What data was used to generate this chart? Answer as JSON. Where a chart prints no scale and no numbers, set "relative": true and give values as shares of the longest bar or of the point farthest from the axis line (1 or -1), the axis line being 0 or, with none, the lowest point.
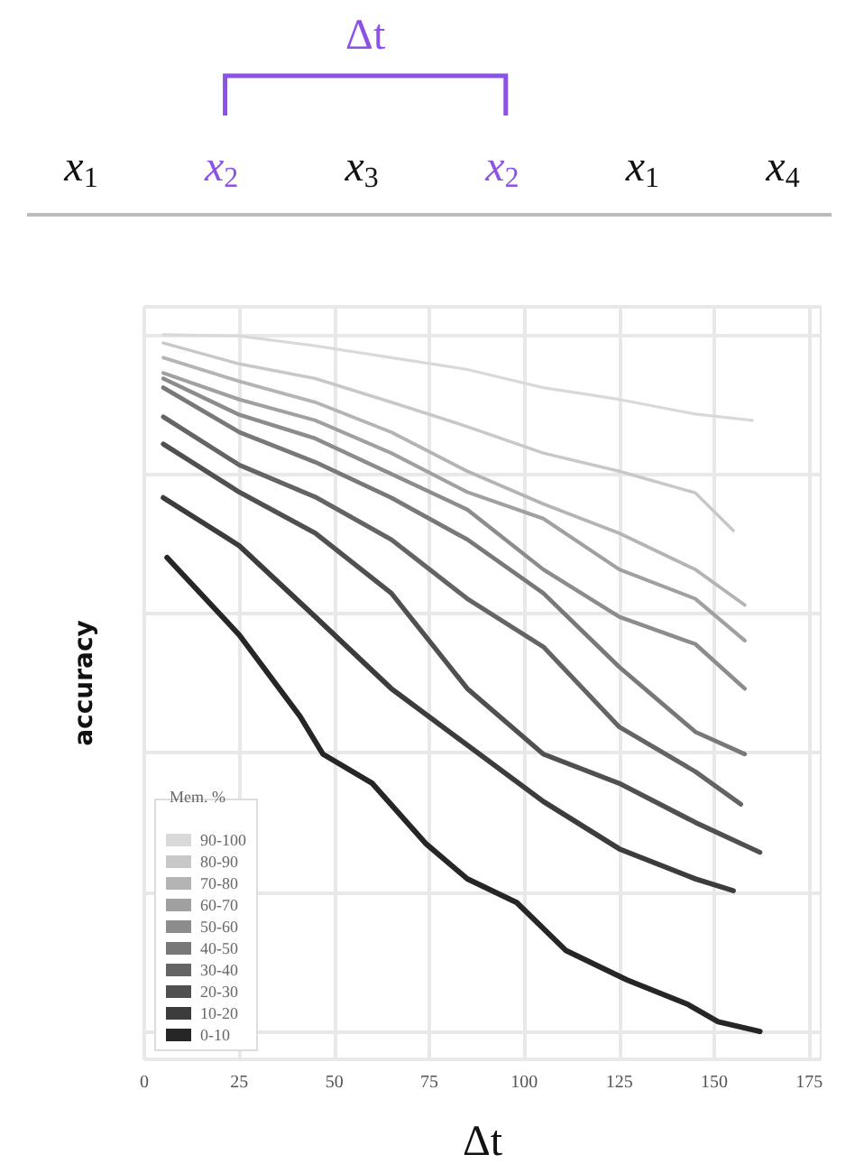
{
  "chart_data": {
    "type": "line",
    "relative": true,
    "xlabel": "Δt",
    "ylabel": "accuracy",
    "legend_title": "Mem. %",
    "legend": "bottom left",
    "grid": true,
    "marker": "none",
    "line_style": "solid",
    "annotations": [
      "Δt",
      "x$_{1}$",
      "x$_{2}$",
      "x$_{3}$",
      "x$_{2}$",
      "x$_{1}$",
      "x$_{4}$"
    ],
    "xlim": [
      0,
      178
    ],
    "xticks": [
      0,
      25,
      50,
      75,
      100,
      125,
      150,
      175
    ],
    "series": [
      {
        "name": "90-100",
        "color": "#d9d9d9",
        "x": [
          5,
          25,
          45,
          65,
          85,
          105,
          125,
          145,
          160
        ],
        "values": [
          1,
          0.998,
          0.984,
          0.967,
          0.95,
          0.924,
          0.907,
          0.886,
          0.877
        ]
      },
      {
        "name": "80-90",
        "color": "#c8c8c8",
        "x": [
          5,
          25,
          45,
          65,
          85,
          105,
          125,
          145,
          155
        ],
        "values": [
          0.988,
          0.958,
          0.937,
          0.903,
          0.868,
          0.83,
          0.804,
          0.773,
          0.719
        ]
      },
      {
        "name": "70-80",
        "color": "#b4b4b4",
        "x": [
          5,
          25,
          45,
          65,
          85,
          105,
          125,
          145,
          158
        ],
        "values": [
          0.967,
          0.933,
          0.903,
          0.86,
          0.804,
          0.757,
          0.715,
          0.663,
          0.612
        ]
      },
      {
        "name": "60-70",
        "color": "#a0a0a0",
        "x": [
          5,
          25,
          45,
          65,
          85,
          105,
          125,
          145,
          158
        ],
        "values": [
          0.945,
          0.907,
          0.877,
          0.83,
          0.774,
          0.736,
          0.663,
          0.621,
          0.561
        ]
      },
      {
        "name": "50-60",
        "color": "#8c8c8c",
        "x": [
          5,
          25,
          45,
          65,
          85,
          105,
          125,
          145,
          158
        ],
        "values": [
          0.937,
          0.885,
          0.851,
          0.8,
          0.749,
          0.663,
          0.595,
          0.556,
          0.492
        ]
      },
      {
        "name": "40-50",
        "color": "#787878",
        "x": [
          5,
          25,
          45,
          65,
          85,
          105,
          125,
          145,
          158
        ],
        "values": [
          0.924,
          0.86,
          0.817,
          0.766,
          0.706,
          0.629,
          0.523,
          0.43,
          0.398
        ]
      },
      {
        "name": "30-40",
        "color": "#646464",
        "x": [
          5,
          25,
          45,
          65,
          85,
          105,
          125,
          145,
          157
        ],
        "values": [
          0.882,
          0.813,
          0.767,
          0.706,
          0.621,
          0.552,
          0.437,
          0.373,
          0.326
        ]
      },
      {
        "name": "20-30",
        "color": "#505050",
        "x": [
          5,
          25,
          45,
          65,
          85,
          105,
          125,
          145,
          162
        ],
        "values": [
          0.843,
          0.774,
          0.715,
          0.629,
          0.492,
          0.398,
          0.356,
          0.3,
          0.257
        ]
      },
      {
        "name": "10-20",
        "color": "#3c3c3c",
        "x": [
          5,
          25,
          45,
          65,
          85,
          105,
          125,
          145,
          155
        ],
        "values": [
          0.766,
          0.697,
          0.595,
          0.492,
          0.411,
          0.33,
          0.262,
          0.219,
          0.202
        ]
      },
      {
        "name": "0-10",
        "color": "#262626",
        "x": [
          6,
          25,
          41,
          47,
          60,
          74,
          85,
          98,
          111,
          127,
          143,
          151,
          162
        ],
        "values": [
          0.68,
          0.569,
          0.452,
          0.398,
          0.356,
          0.27,
          0.219,
          0.185,
          0.116,
          0.074,
          0.039,
          0.014,
          0
        ]
      }
    ]
  }
}
